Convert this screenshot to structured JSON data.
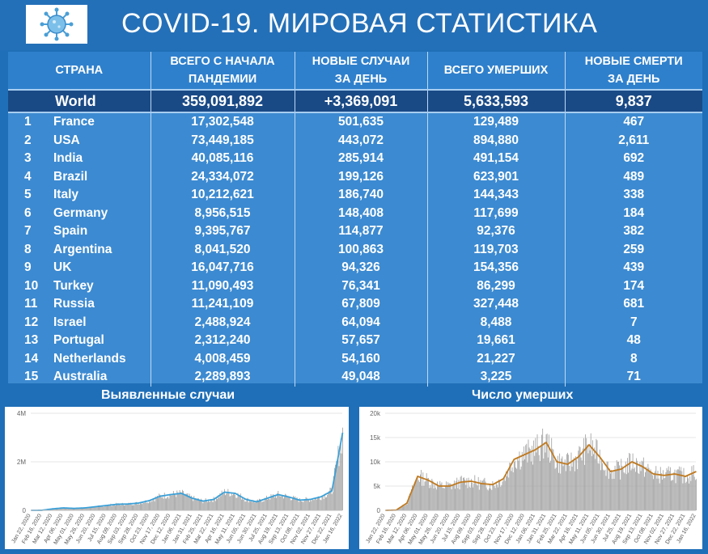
{
  "title": "COVID-19. МИРОВАЯ СТАТИСТИКА",
  "logo_icon": "coronavirus-icon",
  "table": {
    "headers": {
      "country": "СТРАНА",
      "total_line1": "ВСЕГО С НАЧАЛА",
      "total_line2": "ПАНДЕМИИ",
      "new_line1": "НОВЫЕ СЛУЧАИ",
      "new_line2": "ЗА ДЕНЬ",
      "deaths": "ВСЕГО УМЕРШИХ",
      "new_deaths_line1": "НОВЫЕ СМЕРТИ",
      "new_deaths_line2": "ЗА ДЕНЬ"
    },
    "world": {
      "name": "World",
      "total": "359,091,892",
      "new": "+3,369,091",
      "deaths": "5,633,593",
      "new_deaths": "9,837"
    },
    "rows": [
      {
        "rank": "1",
        "country": "France",
        "total": "17,302,548",
        "new": "501,635",
        "deaths": "129,489",
        "new_deaths": "467"
      },
      {
        "rank": "2",
        "country": "USA",
        "total": "73,449,185",
        "new": "443,072",
        "deaths": "894,880",
        "new_deaths": "2,611"
      },
      {
        "rank": "3",
        "country": "India",
        "total": "40,085,116",
        "new": "285,914",
        "deaths": "491,154",
        "new_deaths": "692"
      },
      {
        "rank": "4",
        "country": "Brazil",
        "total": "24,334,072",
        "new": "199,126",
        "deaths": "623,901",
        "new_deaths": "489"
      },
      {
        "rank": "5",
        "country": "Italy",
        "total": "10,212,621",
        "new": "186,740",
        "deaths": "144,343",
        "new_deaths": "338"
      },
      {
        "rank": "6",
        "country": "Germany",
        "total": "8,956,515",
        "new": "148,408",
        "deaths": "117,699",
        "new_deaths": "184"
      },
      {
        "rank": "7",
        "country": "Spain",
        "total": "9,395,767",
        "new": "114,877",
        "deaths": "92,376",
        "new_deaths": "382"
      },
      {
        "rank": "8",
        "country": "Argentina",
        "total": "8,041,520",
        "new": "100,863",
        "deaths": "119,703",
        "new_deaths": "259"
      },
      {
        "rank": "9",
        "country": "UK",
        "total": "16,047,716",
        "new": "94,326",
        "deaths": "154,356",
        "new_deaths": "439"
      },
      {
        "rank": "10",
        "country": "Turkey",
        "total": "11,090,493",
        "new": "76,341",
        "deaths": "86,299",
        "new_deaths": "174"
      },
      {
        "rank": "11",
        "country": "Russia",
        "total": "11,241,109",
        "new": "67,809",
        "deaths": "327,448",
        "new_deaths": "681"
      },
      {
        "rank": "12",
        "country": "Israel",
        "total": "2,488,924",
        "new": "64,094",
        "deaths": "8,488",
        "new_deaths": "7"
      },
      {
        "rank": "13",
        "country": "Portugal",
        "total": "2,312,240",
        "new": "57,657",
        "deaths": "19,661",
        "new_deaths": "48"
      },
      {
        "rank": "14",
        "country": "Netherlands",
        "total": "4,008,459",
        "new": "54,160",
        "deaths": "21,227",
        "new_deaths": "8"
      },
      {
        "rank": "15",
        "country": "Australia",
        "total": "2,289,893",
        "new": "49,048",
        "deaths": "3,225",
        "new_deaths": "71"
      }
    ]
  },
  "colors": {
    "background": "#1f6fb8",
    "header_bg": "#2f80cc",
    "world_row_bg": "#1a4a86",
    "table_bg": "#3c8ad1",
    "bar_gray": "#a0a0a0",
    "cases_line": "#3aa0d8",
    "deaths_line": "#c07a20"
  },
  "chart_data": [
    {
      "type": "bar",
      "title": "Выявленные случаи",
      "ylim": [
        0,
        4000000
      ],
      "yticks": [
        {
          "value": 0,
          "label": "0"
        },
        {
          "value": 2000000,
          "label": "2M"
        },
        {
          "value": 4000000,
          "label": "4M"
        }
      ],
      "xtick_labels": [
        "Jan 22, 2020",
        "Feb 16, 2020",
        "Mar 12, 2020",
        "Apr 06, 2020",
        "May 01, 2020",
        "May 26, 2020",
        "Jun 20, 2020",
        "Jul 15, 2020",
        "Aug 09, 2020",
        "Sep 03, 2020",
        "Sep 28, 2020",
        "Oct 23, 2020",
        "Nov 17, 2020",
        "Dec 12, 2020",
        "Jan 06, 2021",
        "Jan 31, 2021",
        "Feb 25, 2021",
        "Mar 22, 2021",
        "Apr 16, 2021",
        "May 11, 2021",
        "Jun 05, 2021",
        "Jun 30, 2021",
        "Jul 25, 2021",
        "Aug 19, 2021",
        "Sep 13, 2021",
        "Oct 08, 2021",
        "Nov 02, 2021",
        "Nov 27, 2021",
        "Dec 22, 2021",
        "Jan 16, 2022"
      ],
      "series": [
        {
          "values": [
            0,
            2000,
            60000,
            100000,
            80000,
            100000,
            150000,
            200000,
            250000,
            260000,
            300000,
            400000,
            580000,
            650000,
            700000,
            500000,
            380000,
            450000,
            750000,
            700000,
            450000,
            350000,
            500000,
            650000,
            550000,
            420000,
            450000,
            560000,
            800000,
            3200000
          ]
        }
      ]
    },
    {
      "type": "bar",
      "title": "Число умерших",
      "ylim": [
        0,
        20000
      ],
      "yticks": [
        {
          "value": 0,
          "label": "0"
        },
        {
          "value": 5000,
          "label": "5k"
        },
        {
          "value": 10000,
          "label": "10k"
        },
        {
          "value": 15000,
          "label": "15k"
        },
        {
          "value": 20000,
          "label": "20k"
        }
      ],
      "xtick_labels": [
        "Jan 22, 2020",
        "Feb 16, 2020",
        "Mar 12, 2020",
        "Apr 06, 2020",
        "May 01, 2020",
        "May 26, 2020",
        "Jun 20, 2020",
        "Jul 15, 2020",
        "Aug 09, 2020",
        "Sep 03, 2020",
        "Sep 28, 2020",
        "Oct 23, 2020",
        "Nov 17, 2020",
        "Dec 12, 2020",
        "Jan 06, 2021",
        "Jan 31, 2021",
        "Feb 25, 2021",
        "Mar 22, 2021",
        "Apr 16, 2021",
        "May 11, 2021",
        "Jun 05, 2021",
        "Jun 30, 2021",
        "Jul 25, 2021",
        "Aug 19, 2021",
        "Sep 13, 2021",
        "Oct 08, 2021",
        "Nov 02, 2021",
        "Nov 27, 2021",
        "Dec 22, 2021",
        "Jan 16, 2022"
      ],
      "series": [
        {
          "values": [
            0,
            50,
            1500,
            7000,
            6200,
            5000,
            5000,
            5800,
            6000,
            5500,
            5300,
            6500,
            10500,
            11500,
            12500,
            14000,
            10000,
            9500,
            11000,
            13500,
            11000,
            8000,
            8500,
            10000,
            9000,
            7500,
            7200,
            7500,
            7000,
            8000
          ]
        }
      ]
    }
  ]
}
